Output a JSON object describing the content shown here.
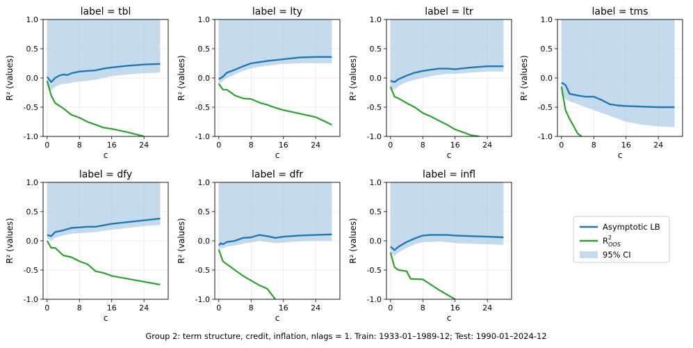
{
  "caption": "Group 2: term structure, credit, inflation, nlags = 1. Train: 1933-01–1989-12; Test: 1990-01–2024-12",
  "legend": {
    "asymptotic_lb": "Asymptotic LB",
    "r2_oos_base": "R",
    "r2_oos_sup": "2",
    "r2_oos_sub": "OOS",
    "ci": "95% CI"
  },
  "colors": {
    "lb": "#1f77b4",
    "oos": "#2ca02c",
    "ci": "#a6c8e0",
    "grid": "#e6e6e6"
  },
  "chart_data": [
    {
      "type": "line",
      "title": "label = tbl",
      "xlabel": "c",
      "ylabel": "R² (values)",
      "xlim": [
        -1,
        30
      ],
      "ylim": [
        -1.0,
        1.0
      ],
      "xticks": [
        "0",
        "8",
        "16",
        "24"
      ],
      "yticks": [
        "1.0",
        "0.5",
        "0.0",
        "-0.5",
        "-1.0"
      ],
      "x": [
        0,
        1,
        2,
        3,
        4,
        5,
        6,
        8,
        10,
        12,
        14,
        16,
        20,
        24,
        28
      ],
      "lb": [
        0.02,
        -0.07,
        0.0,
        0.04,
        0.06,
        0.05,
        0.08,
        0.11,
        0.12,
        0.13,
        0.16,
        0.18,
        0.21,
        0.23,
        0.24
      ],
      "ci_upper": 1.0,
      "ci_lower": [
        -0.12,
        -0.22,
        -0.15,
        -0.12,
        -0.1,
        -0.1,
        -0.08,
        -0.06,
        -0.05,
        -0.03,
        0.0,
        0.03,
        0.06,
        0.08,
        0.09
      ],
      "oos_x": [
        0,
        1,
        2,
        4,
        6,
        8,
        10,
        12,
        14,
        16,
        20,
        24
      ],
      "oos": [
        -0.05,
        -0.3,
        -0.43,
        -0.52,
        -0.63,
        -0.68,
        -0.75,
        -0.8,
        -0.85,
        -0.87,
        -0.93,
        -1.0
      ]
    },
    {
      "type": "line",
      "title": "label = lty",
      "xlabel": "c",
      "ylabel": "R² (values)",
      "xlim": [
        -1,
        30
      ],
      "ylim": [
        -1.0,
        1.0
      ],
      "xticks": [
        "0",
        "8",
        "16",
        "24"
      ],
      "yticks": [
        "1.0",
        "0.5",
        "0.0",
        "-0.5",
        "-1.0"
      ],
      "x": [
        0,
        1,
        2,
        4,
        6,
        8,
        10,
        12,
        16,
        20,
        24,
        28
      ],
      "lb": [
        -0.02,
        0.02,
        0.09,
        0.14,
        0.2,
        0.25,
        0.27,
        0.29,
        0.32,
        0.35,
        0.36,
        0.36
      ],
      "ci_upper": 1.0,
      "ci_lower": [
        -0.1,
        -0.06,
        0.0,
        0.06,
        0.12,
        0.16,
        0.19,
        0.21,
        0.24,
        0.25,
        0.25,
        0.25
      ],
      "oos_x": [
        0,
        1,
        2,
        3,
        4,
        6,
        8,
        10,
        12,
        14,
        16,
        20,
        24,
        28
      ],
      "oos": [
        -0.1,
        -0.2,
        -0.2,
        -0.25,
        -0.3,
        -0.35,
        -0.36,
        -0.42,
        -0.46,
        -0.51,
        -0.55,
        -0.61,
        -0.67,
        -0.8
      ]
    },
    {
      "type": "line",
      "title": "label = ltr",
      "xlabel": "c",
      "ylabel": "R² (values)",
      "xlim": [
        -1,
        30
      ],
      "ylim": [
        -1.0,
        1.0
      ],
      "xticks": [
        "0",
        "8",
        "16",
        "24"
      ],
      "yticks": [
        "1.0",
        "0.5",
        "0.0",
        "-0.5",
        "-1.0"
      ],
      "x": [
        0,
        1,
        2,
        4,
        6,
        8,
        10,
        12,
        14,
        16,
        20,
        24,
        28
      ],
      "lb": [
        -0.05,
        -0.07,
        -0.02,
        0.04,
        0.09,
        0.12,
        0.14,
        0.16,
        0.16,
        0.15,
        0.18,
        0.2,
        0.2
      ],
      "ci_upper": 1.0,
      "ci_lower": [
        -0.18,
        -0.2,
        -0.14,
        -0.07,
        -0.03,
        0.0,
        0.03,
        0.05,
        0.07,
        0.07,
        0.09,
        0.11,
        0.11
      ],
      "oos_x": [
        0,
        1,
        2,
        4,
        6,
        8,
        10,
        12,
        14,
        16,
        20,
        22
      ],
      "oos": [
        -0.15,
        -0.32,
        -0.35,
        -0.43,
        -0.5,
        -0.6,
        -0.66,
        -0.73,
        -0.8,
        -0.88,
        -0.98,
        -1.0
      ]
    },
    {
      "type": "line",
      "title": "label = tms",
      "xlabel": "c",
      "ylabel": "R² (values)",
      "xlim": [
        -1,
        30
      ],
      "ylim": [
        -1.0,
        1.0
      ],
      "xticks": [
        "0",
        "8",
        "16",
        "24"
      ],
      "yticks": [
        "1.0",
        "0.5",
        "0.0",
        "-0.5",
        "-1.0"
      ],
      "x": [
        0,
        1,
        2,
        4,
        6,
        8,
        10,
        12,
        14,
        16,
        20,
        24,
        28
      ],
      "lb": [
        -0.08,
        -0.12,
        -0.27,
        -0.3,
        -0.32,
        -0.32,
        -0.38,
        -0.45,
        -0.47,
        -0.48,
        -0.49,
        -0.5,
        -0.5
      ],
      "ci_upper": 1.0,
      "ci_lower": [
        -0.3,
        -0.36,
        -0.4,
        -0.45,
        -0.5,
        -0.55,
        -0.6,
        -0.65,
        -0.7,
        -0.75,
        -0.8,
        -0.83,
        -0.84
      ],
      "oos_x": [
        0,
        0.5,
        1,
        2,
        3,
        4,
        5
      ],
      "oos": [
        -0.15,
        -0.35,
        -0.55,
        -0.7,
        -0.82,
        -0.95,
        -1.0
      ]
    },
    {
      "type": "line",
      "title": "label = dfy",
      "xlabel": "c",
      "ylabel": "R² (values)",
      "xlim": [
        -1,
        30
      ],
      "ylim": [
        -1.0,
        1.0
      ],
      "xticks": [
        "0",
        "8",
        "16",
        "24"
      ],
      "yticks": [
        "1.0",
        "0.5",
        "0.0",
        "-0.5",
        "-1.0"
      ],
      "x": [
        0,
        1,
        2,
        4,
        6,
        8,
        10,
        12,
        16,
        20,
        24,
        28
      ],
      "lb": [
        0.1,
        0.08,
        0.15,
        0.18,
        0.22,
        0.23,
        0.24,
        0.24,
        0.29,
        0.32,
        0.35,
        0.38
      ],
      "ci_upper": 1.0,
      "ci_lower": [
        0.05,
        0.0,
        0.05,
        0.09,
        0.12,
        0.13,
        0.14,
        0.15,
        0.19,
        0.22,
        0.25,
        0.27
      ],
      "oos_x": [
        0,
        1,
        2,
        4,
        6,
        8,
        10,
        12,
        14,
        16,
        20,
        24,
        28
      ],
      "oos": [
        0.0,
        -0.12,
        -0.12,
        -0.25,
        -0.28,
        -0.35,
        -0.4,
        -0.52,
        -0.55,
        -0.6,
        -0.65,
        -0.7,
        -0.75
      ]
    },
    {
      "type": "line",
      "title": "label = dfr",
      "xlabel": "c",
      "ylabel": "R² (values)",
      "xlim": [
        -1,
        30
      ],
      "ylim": [
        -1.0,
        1.0
      ],
      "xticks": [
        "0",
        "8",
        "16",
        "24"
      ],
      "yticks": [
        "1.0",
        "0.5",
        "0.0",
        "-0.5",
        "-1.0"
      ],
      "x": [
        0,
        0.5,
        1,
        2,
        4,
        6,
        8,
        10,
        12,
        14,
        16,
        20,
        24,
        28
      ],
      "lb": [
        -0.08,
        -0.04,
        -0.06,
        -0.02,
        0.0,
        0.05,
        0.06,
        0.1,
        0.08,
        0.05,
        0.07,
        0.09,
        0.1,
        0.11
      ],
      "ci_upper": 1.0,
      "ci_lower": [
        -0.16,
        -0.12,
        -0.13,
        -0.1,
        -0.08,
        -0.05,
        -0.03,
        0.0,
        -0.02,
        -0.04,
        -0.03,
        -0.01,
        0.0,
        0.0
      ],
      "oos_x": [
        0,
        1,
        2,
        4,
        6,
        8,
        10,
        12,
        14
      ],
      "oos": [
        -0.15,
        -0.35,
        -0.4,
        -0.5,
        -0.6,
        -0.68,
        -0.76,
        -0.82,
        -1.0
      ]
    },
    {
      "type": "line",
      "title": "label = infl",
      "xlabel": "c",
      "ylabel": "R² (values)",
      "xlim": [
        -1,
        30
      ],
      "ylim": [
        -1.0,
        1.0
      ],
      "xticks": [
        "0",
        "8",
        "16",
        "24"
      ],
      "yticks": [
        "1.0",
        "0.5",
        "0.0",
        "-0.5",
        "-1.0"
      ],
      "x": [
        0,
        1,
        2,
        4,
        6,
        8,
        10,
        12,
        14,
        16,
        20,
        24,
        28
      ],
      "lb": [
        -0.1,
        -0.16,
        -0.1,
        -0.02,
        0.04,
        0.09,
        0.1,
        0.1,
        0.1,
        0.09,
        0.08,
        0.07,
        0.06
      ],
      "ci_upper": 1.0,
      "ci_lower": [
        -0.2,
        -0.26,
        -0.2,
        -0.12,
        -0.06,
        -0.02,
        -0.02,
        -0.01,
        -0.02,
        -0.04,
        -0.05,
        -0.06,
        -0.07
      ],
      "oos_x": [
        0,
        1,
        2,
        4,
        5,
        8,
        10,
        12,
        14,
        16
      ],
      "oos": [
        -0.2,
        -0.45,
        -0.5,
        -0.52,
        -0.65,
        -0.66,
        -0.75,
        -0.84,
        -0.92,
        -1.0
      ]
    }
  ]
}
